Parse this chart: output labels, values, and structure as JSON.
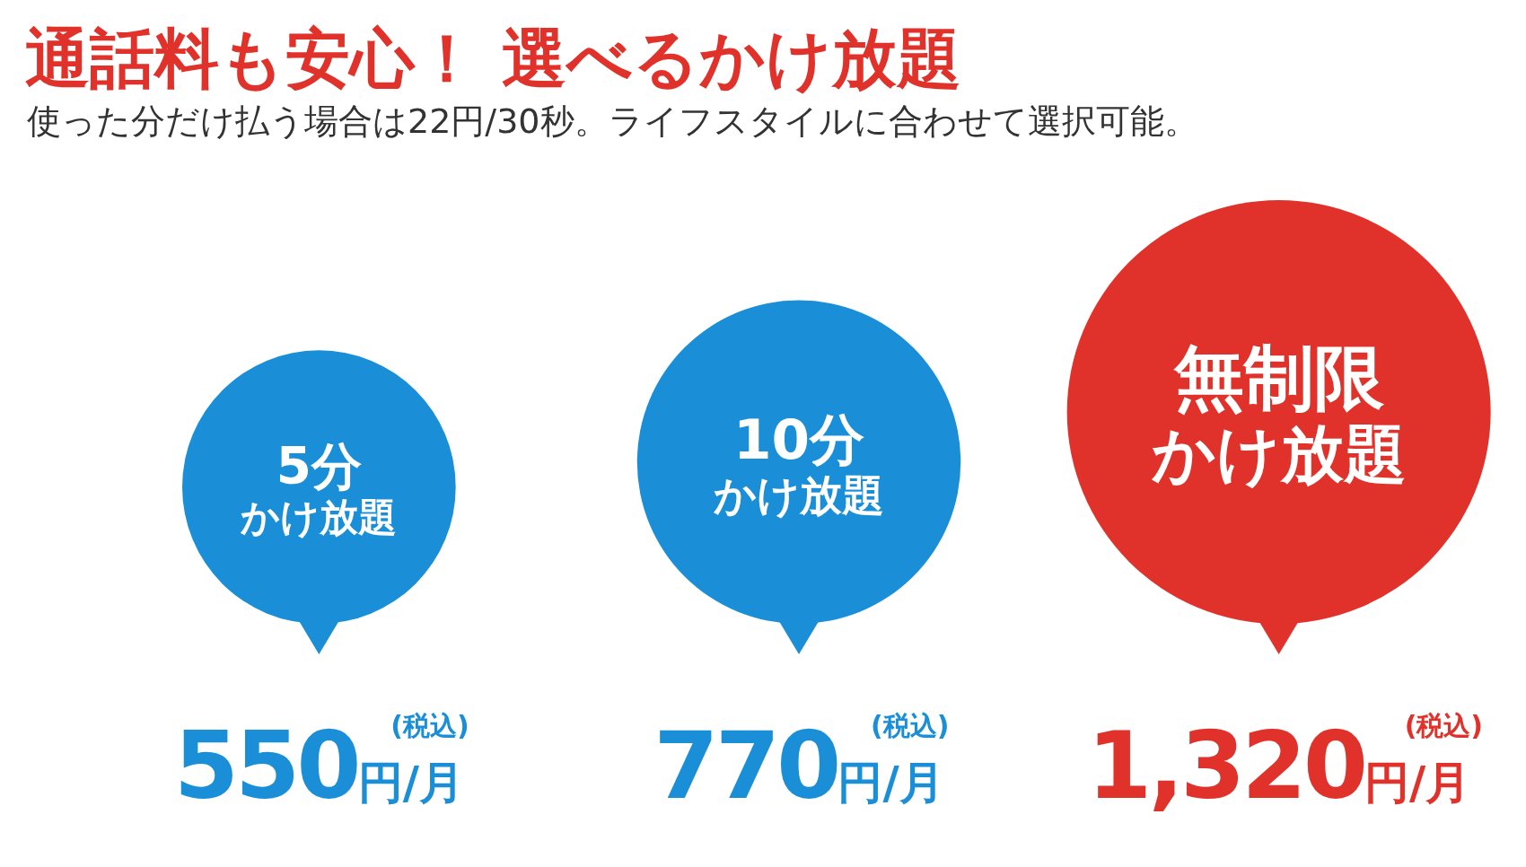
{
  "chart_data": {
    "type": "other",
    "title": "通話料も安心！ 選べるかけ放題",
    "subtitle": "使った分だけ払う場合は22円/30秒。ライフスタイルに合わせて選択可能。",
    "categories": [
      "5分",
      "10分",
      "無制限"
    ],
    "values": [
      550,
      770,
      1320
    ],
    "colors": [
      "#1a8fd8",
      "#1a8fd8",
      "#e0322a"
    ],
    "value_labels": [
      "550円/月",
      "770円/月",
      "1,320円/月"
    ],
    "annotations": [
      "かけ放題",
      "かけ放題",
      "かけ放題",
      "(税込)",
      "(税込)",
      "(税込)"
    ]
  }
}
